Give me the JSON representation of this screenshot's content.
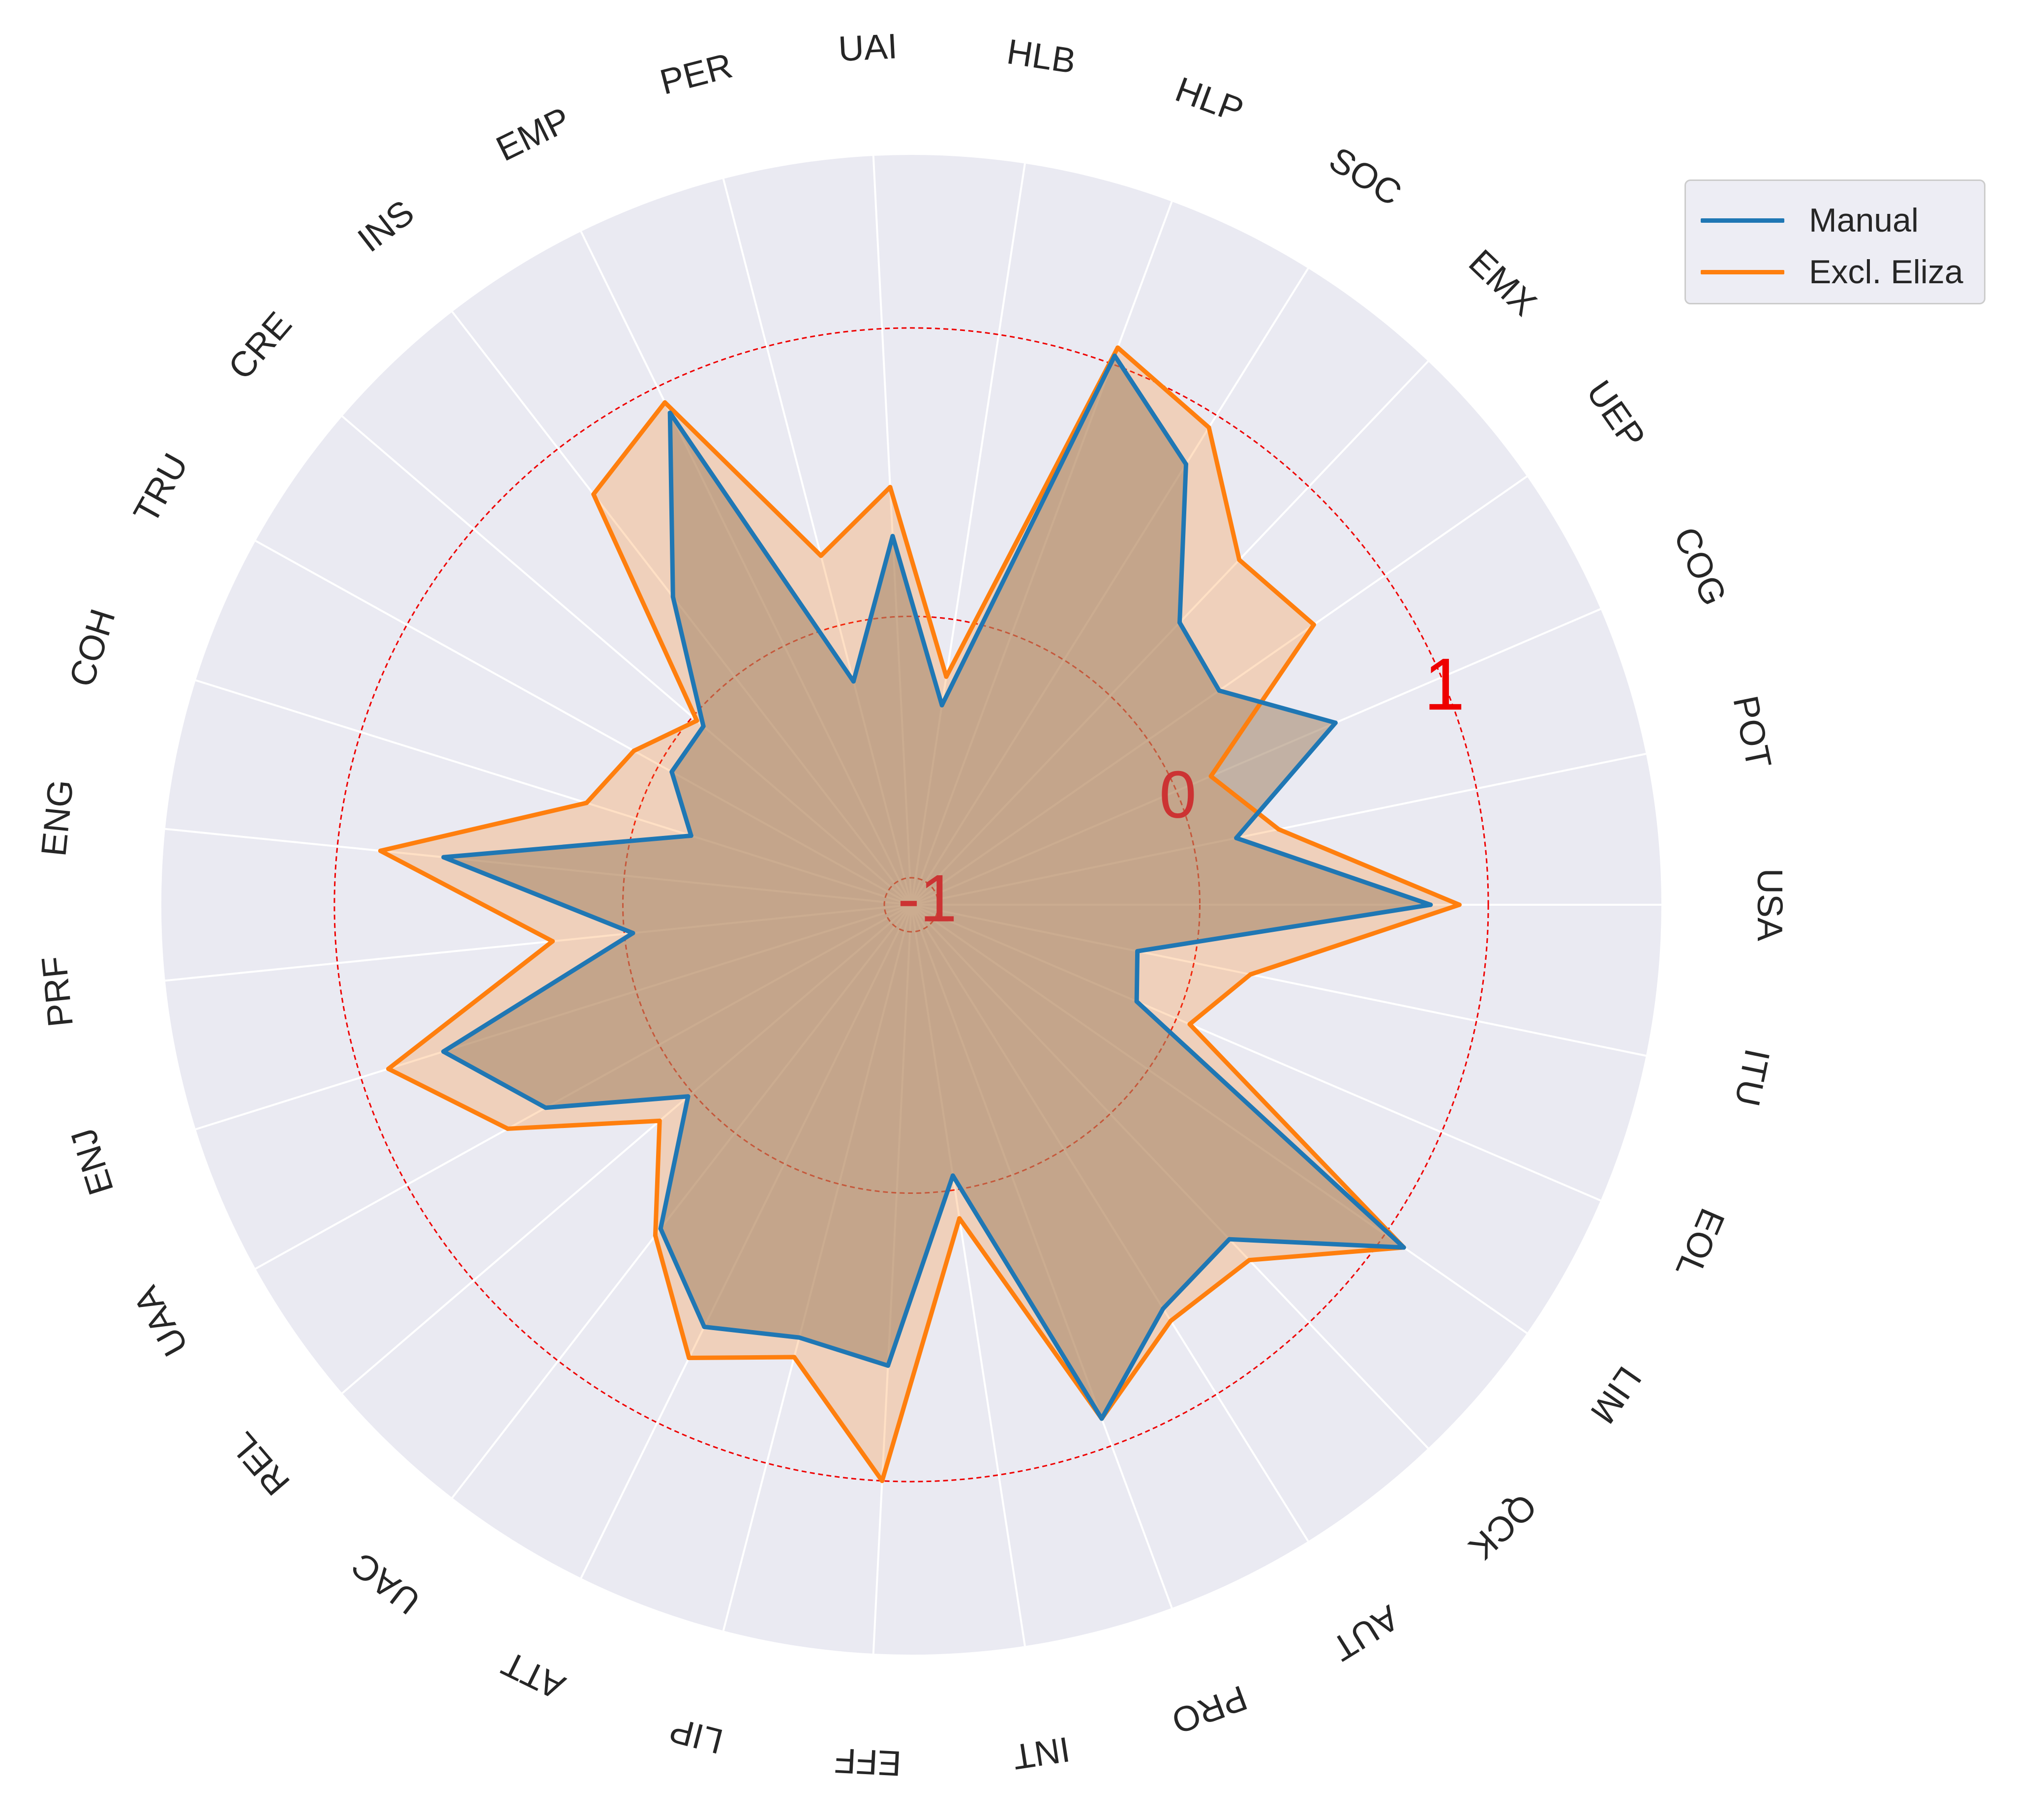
{
  "chart_data": {
    "type": "radar",
    "categories": [
      "USA",
      "POT",
      "COG",
      "UEP",
      "EMX",
      "SOC",
      "HLP",
      "HLB",
      "UAI",
      "PER",
      "EMP",
      "INS",
      "CRE",
      "TRU",
      "COH",
      "ENG",
      "PRF",
      "ENJ",
      "UAA",
      "REL",
      "UAC",
      "ATT",
      "LIP",
      "EFF",
      "INT",
      "PRO",
      "AUT",
      "QCK",
      "LIM",
      "EOL",
      "ITU"
    ],
    "series": [
      {
        "name": "Manual",
        "color": "#1f77b4",
        "values": [
          0.8,
          0.15,
          0.6,
          0.3,
          0.35,
          0.8,
          1.03,
          -0.3,
          0.28,
          -0.2,
          0.9,
          0.35,
          -0.05,
          -0.05,
          -0.2,
          0.63,
          -0.03,
          0.7,
          0.45,
          0.02,
          0.42,
          0.63,
          0.55,
          0.6,
          -0.05,
          0.9,
          0.65,
          0.6,
          1.08,
          -0.15,
          -0.2
        ]
      },
      {
        "name": "Excl. Eliza",
        "color": "#ff7f0e",
        "values": [
          0.9,
          0.3,
          0.13,
          0.7,
          0.65,
          0.95,
          1.06,
          -0.2,
          0.45,
          0.25,
          0.94,
          0.8,
          -0.02,
          0.1,
          0.18,
          0.85,
          0.25,
          0.9,
          0.6,
          0.15,
          0.45,
          0.75,
          0.62,
          1.0,
          0.1,
          0.9,
          0.7,
          0.7,
          1.08,
          0.05,
          0.2
        ]
      }
    ],
    "rlim": [
      -1.0,
      1.6
    ],
    "ring_ticks": [
      "-1",
      "0",
      "1"
    ],
    "ring_values": [
      -1,
      0,
      1
    ],
    "ring_colors": [
      "#cc3333",
      "#cc3333",
      "#ee0000"
    ],
    "grid": true,
    "legend_position": "top-right"
  }
}
